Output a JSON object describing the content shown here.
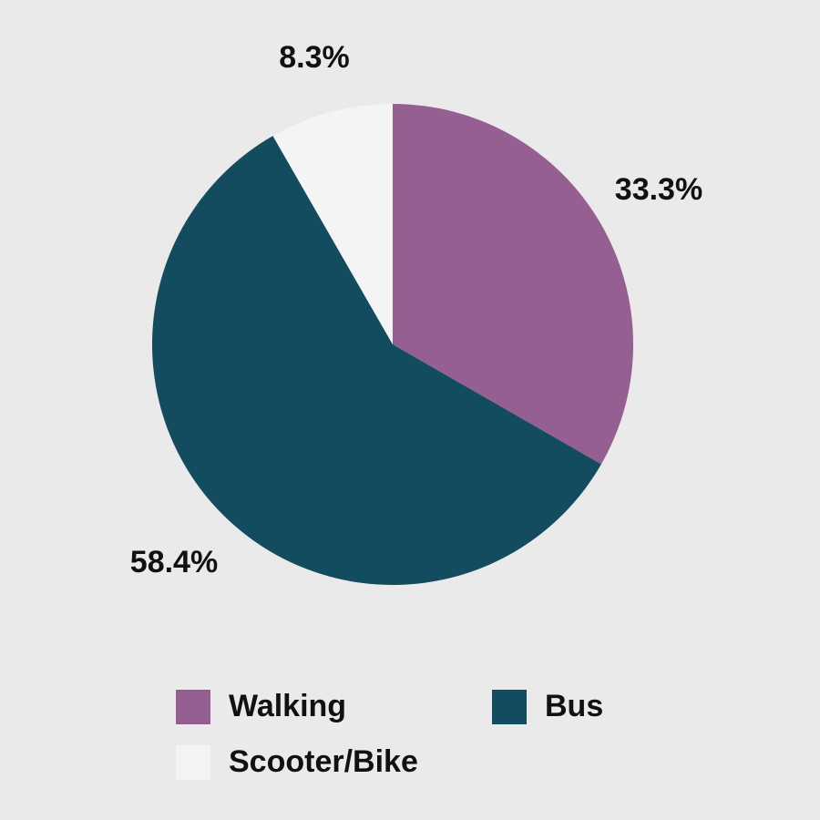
{
  "chart_data": {
    "type": "pie",
    "title": "",
    "slices": [
      {
        "name": "Walking",
        "value": 33.3,
        "label": "33.3%",
        "color": "#965f92"
      },
      {
        "name": "Bus",
        "value": 58.4,
        "label": "58.4%",
        "color": "#134b5f"
      },
      {
        "name": "Scooter/Bike",
        "value": 8.3,
        "label": "8.3%",
        "color": "#f4f4f5"
      }
    ],
    "start_angle": "12 o'clock",
    "direction": "clockwise",
    "legend": {
      "placement": "bottom",
      "columns": 2,
      "items": [
        "Walking",
        "Bus",
        "Scooter/Bike"
      ]
    }
  },
  "colors": {
    "background": "#ebeaea",
    "text": "#111111"
  }
}
